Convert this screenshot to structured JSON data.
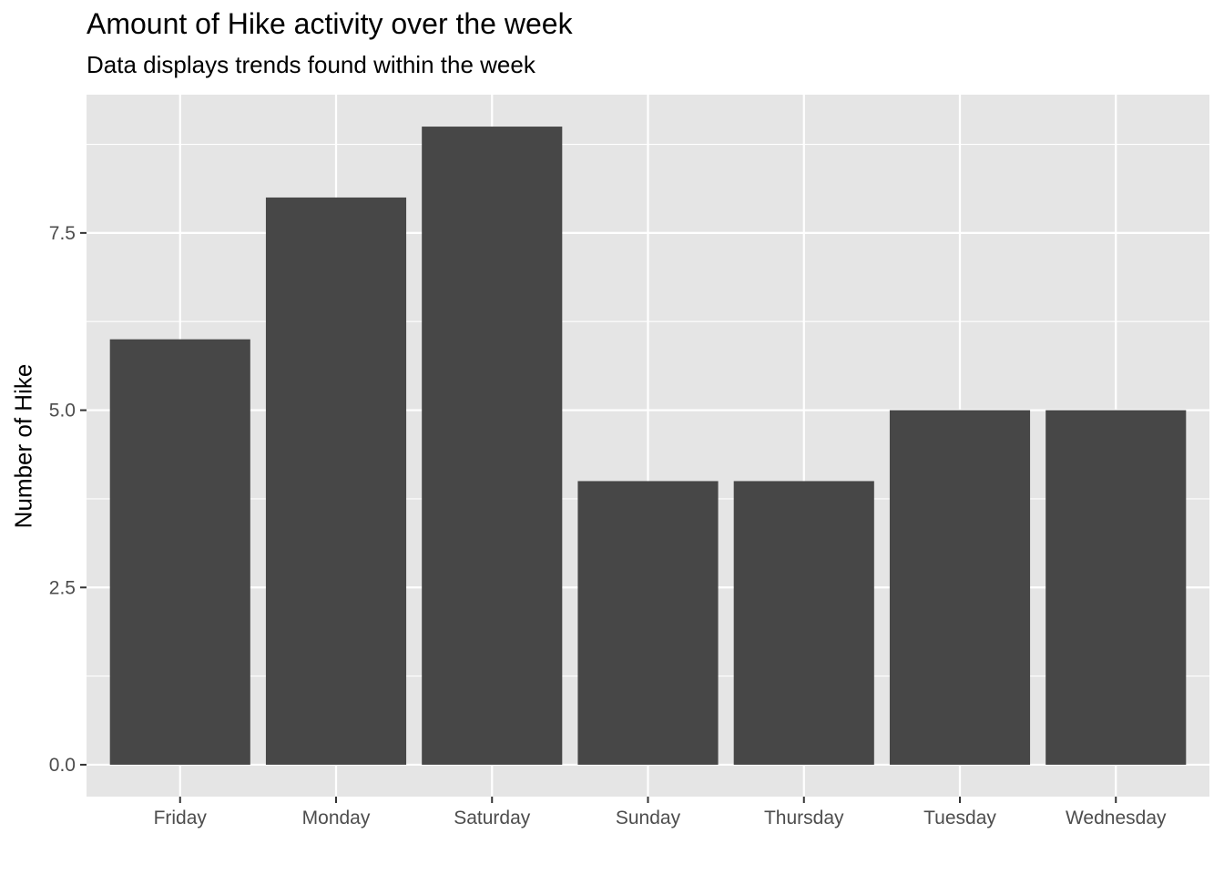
{
  "chart_data": {
    "type": "bar",
    "title": "Amount of Hike activity over the week",
    "subtitle": "Data displays trends found within the week",
    "xlabel": "",
    "ylabel": "Number of Hike",
    "categories": [
      "Friday",
      "Monday",
      "Saturday",
      "Sunday",
      "Thursday",
      "Tuesday",
      "Wednesday"
    ],
    "values": [
      6,
      8,
      9,
      4,
      4,
      5,
      5
    ],
    "ylim": [
      0,
      9.45
    ],
    "yticks": [
      "0.0",
      "2.5",
      "5.0",
      "7.5"
    ],
    "ytick_values": [
      0,
      2.5,
      5,
      7.5
    ],
    "grid": true,
    "legend": "none",
    "colors": {
      "panel_background": "#e5e5e5",
      "grid": "#ffffff",
      "bar_fill": "#474747"
    }
  }
}
